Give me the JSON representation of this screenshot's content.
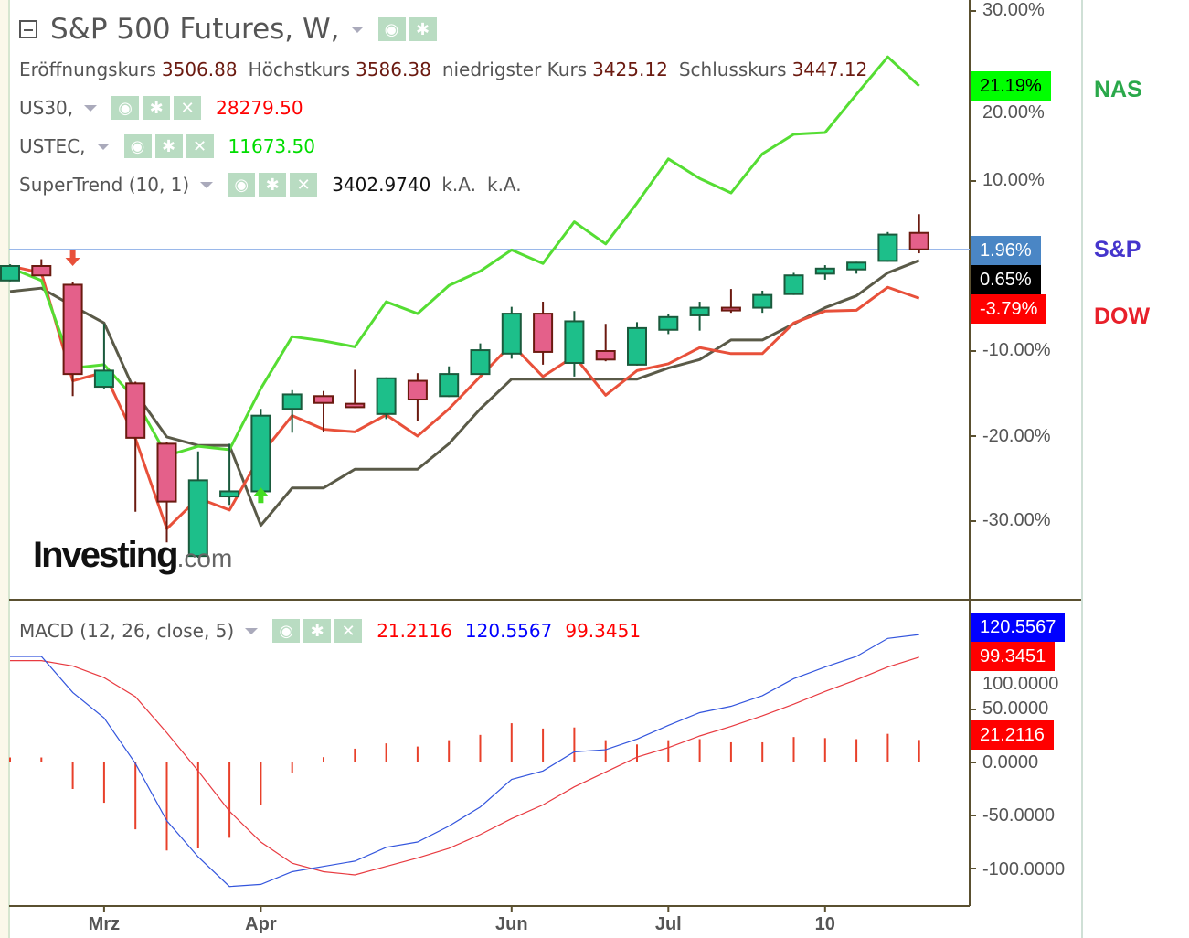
{
  "header": {
    "title": "S&P 500 Futures, W,",
    "ohlc": [
      {
        "label": "Eröffnungskurs",
        "value": "3506.88"
      },
      {
        "label": "Höchstkurs",
        "value": "3586.38"
      },
      {
        "label": "niedrigster Kurs",
        "value": "3425.12"
      },
      {
        "label": "Schlusskurs",
        "value": "3447.12"
      }
    ]
  },
  "legend": {
    "us30": {
      "label": "US30,",
      "value": "28279.50",
      "color": "#ff0000"
    },
    "ustec": {
      "label": "USTEC,",
      "value": "11673.50",
      "color": "#00dd00"
    },
    "supertrend": {
      "label": "SuperTrend (10, 1)",
      "value": "3402.9740",
      "extra1": "k.A.",
      "extra2": "k.A."
    },
    "macd": {
      "label": "MACD (12, 26, close, 5)",
      "hist": "21.2116",
      "macd": "120.5567",
      "signal": "99.3451"
    }
  },
  "icons": {
    "eye": "eye-icon",
    "gear": "gear-icon",
    "close": "close-icon",
    "glyph_close": "✕",
    "glyph_gear": "✱",
    "glyph_eye": "◉"
  },
  "side_labels": [
    {
      "text": "NAS",
      "color": "#2aa84a"
    },
    {
      "text": "S&P",
      "color": "#4535cc"
    },
    {
      "text": "DOW",
      "color": "#e8202a"
    }
  ],
  "price_boxes": [
    {
      "text": "21.19%",
      "bg": "#00ff00",
      "fg": "#000000"
    },
    {
      "text": "1.96%",
      "bg": "#4a86c5",
      "fg": "#ffffff"
    },
    {
      "text": "0.65%",
      "bg": "#000000",
      "fg": "#ffffff"
    },
    {
      "text": "-3.79%",
      "bg": "#ff0000",
      "fg": "#ffffff"
    }
  ],
  "macd_boxes": [
    {
      "text": "120.5567",
      "bg": "#0000ff",
      "fg": "#ffffff"
    },
    {
      "text": "99.3451",
      "bg": "#ff0000",
      "fg": "#ffffff"
    },
    {
      "text": "21.2116",
      "bg": "#ff0000",
      "fg": "#ffffff"
    }
  ],
  "logo": {
    "main": "Investing",
    "suffix": ".com"
  },
  "chart_data": [
    {
      "type": "candlestick",
      "y_unit": "%",
      "ylim": [
        -38,
        32
      ],
      "y_ticks": [
        "30.00%",
        "20.00%",
        "10.00%",
        "-10.00%",
        "-20.00%",
        "-30.00%"
      ],
      "y_tick_values": [
        30,
        20,
        10,
        -10,
        -20,
        -30
      ],
      "x_ticks": [
        {
          "label": "Mrz",
          "index": 3
        },
        {
          "label": "Apr",
          "index": 8
        },
        {
          "label": "Jun",
          "index": 16
        },
        {
          "label": "Jul",
          "index": 21
        },
        {
          "label": "10",
          "index": 26
        }
      ],
      "colors": {
        "up": "#1dbf8a",
        "down": "#e4608a",
        "up_border": "#1a5a3c",
        "down_border": "#6b1a10",
        "price_line": "#9ab8ea"
      },
      "current_price_pct": 1.96,
      "candles": [
        {
          "o": -1.7,
          "h": 0.2,
          "l": -1.8,
          "c": 0
        },
        {
          "o": 0,
          "h": 0.8,
          "l": -1.2,
          "c": -1.1
        },
        {
          "o": -2.2,
          "h": -1.9,
          "l": -15.3,
          "c": -12.7
        },
        {
          "o": -14.2,
          "h": -6.8,
          "l": -14.4,
          "c": -12.3
        },
        {
          "o": -13.8,
          "h": -13.6,
          "l": -28.9,
          "c": -20.2
        },
        {
          "o": -20.9,
          "h": -20.7,
          "l": -32.5,
          "c": -27.7
        },
        {
          "o": -34.1,
          "h": -21.8,
          "l": -34.3,
          "c": -25.2
        },
        {
          "o": -27.1,
          "h": -20.9,
          "l": -28.1,
          "c": -26.5
        },
        {
          "o": -26.5,
          "h": -16.8,
          "l": -26.7,
          "c": -17.6
        },
        {
          "o": -16.8,
          "h": -14.6,
          "l": -19.6,
          "c": -15.1
        },
        {
          "o": -15.3,
          "h": -14.7,
          "l": -19.5,
          "c": -16.1
        },
        {
          "o": -16.2,
          "h": -12.2,
          "l": -16.7,
          "c": -16.6
        },
        {
          "o": -17.4,
          "h": -13.1,
          "l": -18.0,
          "c": -13.2
        },
        {
          "o": -13.5,
          "h": -12.6,
          "l": -18.2,
          "c": -15.7
        },
        {
          "o": -15.3,
          "h": -11.8,
          "l": -15.4,
          "c": -12.7
        },
        {
          "o": -12.7,
          "h": -9.1,
          "l": -12.8,
          "c": -9.9
        },
        {
          "o": -10.3,
          "h": -4.8,
          "l": -10.9,
          "c": -5.6
        },
        {
          "o": -5.6,
          "h": -4.2,
          "l": -11.6,
          "c": -10.1
        },
        {
          "o": -11.4,
          "h": -5.3,
          "l": -13.0,
          "c": -6.5
        },
        {
          "o": -10.0,
          "h": -6.8,
          "l": -11.2,
          "c": -11.0
        },
        {
          "o": -11.6,
          "h": -6.6,
          "l": -11.7,
          "c": -7.3
        },
        {
          "o": -7.5,
          "h": -5.7,
          "l": -8.0,
          "c": -6.0
        },
        {
          "o": -5.8,
          "h": -4.2,
          "l": -7.6,
          "c": -4.9
        },
        {
          "o": -4.9,
          "h": -2.7,
          "l": -5.5,
          "c": -5.2
        },
        {
          "o": -4.9,
          "h": -2.9,
          "l": -5.5,
          "c": -3.4
        },
        {
          "o": -3.3,
          "h": -0.8,
          "l": -3.4,
          "c": -1.1
        },
        {
          "o": -0.9,
          "h": 0.1,
          "l": -1.6,
          "c": -0.3
        },
        {
          "o": -0.4,
          "h": 0.5,
          "l": -0.9,
          "c": 0.4
        },
        {
          "o": 0.6,
          "h": 4.0,
          "l": 0.5,
          "c": 3.7
        },
        {
          "o": 3.9,
          "h": 6.1,
          "l": 1.5,
          "c": 1.96
        }
      ],
      "series": [
        {
          "name": "USTEC,",
          "color": "#55dd33",
          "values": [
            -0.2,
            -1.7,
            -12.0,
            -11.6,
            -15.7,
            -22.3,
            -21.2,
            -21.6,
            -14.4,
            -8.3,
            -8.8,
            -9.5,
            -4.2,
            -5.6,
            -2.3,
            -0.6,
            1.9,
            0.3,
            5.2,
            2.6,
            7.4,
            12.6,
            10.3,
            8.6,
            13.2,
            15.5,
            15.7,
            20.2,
            24.6,
            21.19
          ]
        },
        {
          "name": "US30,",
          "color": "#e8503a",
          "values": [
            0,
            -0.8,
            -13.5,
            -12.5,
            -20.3,
            -30.9,
            -27.3,
            -28.7,
            -22.2,
            -17.6,
            -19.2,
            -19.5,
            -17.5,
            -20.0,
            -16.8,
            -13.0,
            -9.2,
            -13.0,
            -10.6,
            -15.2,
            -12.3,
            -11.5,
            -9.6,
            -10.3,
            -10.3,
            -6.7,
            -5.3,
            -5.2,
            -2.5,
            -3.79
          ]
        },
        {
          "name": "SuperTrend (10, 1)",
          "color": "#5a5a48",
          "values": [
            -3.0,
            -2.6,
            -4.7,
            -6.7,
            -14.9,
            -20.1,
            -21.1,
            -21.1,
            -30.5,
            -26.1,
            -26.1,
            -23.9,
            -23.9,
            -23.9,
            -20.9,
            -16.8,
            -13.3,
            -13.3,
            -13.3,
            -13.3,
            -13.3,
            -12.0,
            -11.0,
            -8.7,
            -8.7,
            -6.8,
            -4.9,
            -3.5,
            -0.8,
            0.65
          ]
        }
      ],
      "signals": [
        {
          "type": "sell",
          "index": 2,
          "color": "#e8503a"
        },
        {
          "type": "buy",
          "index": 8,
          "color": "#44dd22"
        }
      ]
    },
    {
      "type": "macd",
      "ylim": [
        -135,
        135
      ],
      "y_ticks": [
        "100.0000",
        "50.0000",
        "0.0000",
        "-50.0000",
        "-100.0000"
      ],
      "y_tick_values": [
        100,
        50,
        0,
        -50,
        -100
      ],
      "macd": {
        "color": "#3355dd",
        "values": [
          100,
          100,
          66,
          42,
          -1,
          -55,
          -89,
          -117,
          -115,
          -103,
          -98,
          -93,
          -80,
          -75,
          -60,
          -42,
          -16,
          -8,
          10,
          12,
          22,
          35,
          47,
          53,
          63,
          79,
          90,
          100,
          117,
          120.5567
        ]
      },
      "signal": {
        "color": "#e83a40",
        "values": [
          96,
          96,
          91,
          80,
          62,
          28,
          -8,
          -46,
          -75,
          -95,
          -103,
          -106,
          -98,
          -90,
          -81,
          -68,
          -53,
          -40,
          -23,
          -9,
          5,
          14,
          25,
          34,
          44,
          55,
          67,
          78,
          90,
          99.3451
        ]
      },
      "histogram": {
        "color": "#e8402a",
        "values": [
          3,
          3,
          -25,
          -38,
          -63,
          -83,
          -81,
          -71,
          -40,
          -10,
          5,
          13,
          18,
          15,
          21,
          26,
          37,
          32,
          33,
          21,
          17,
          21,
          22,
          19,
          19,
          24,
          23,
          22,
          27,
          21.2116
        ]
      }
    }
  ]
}
